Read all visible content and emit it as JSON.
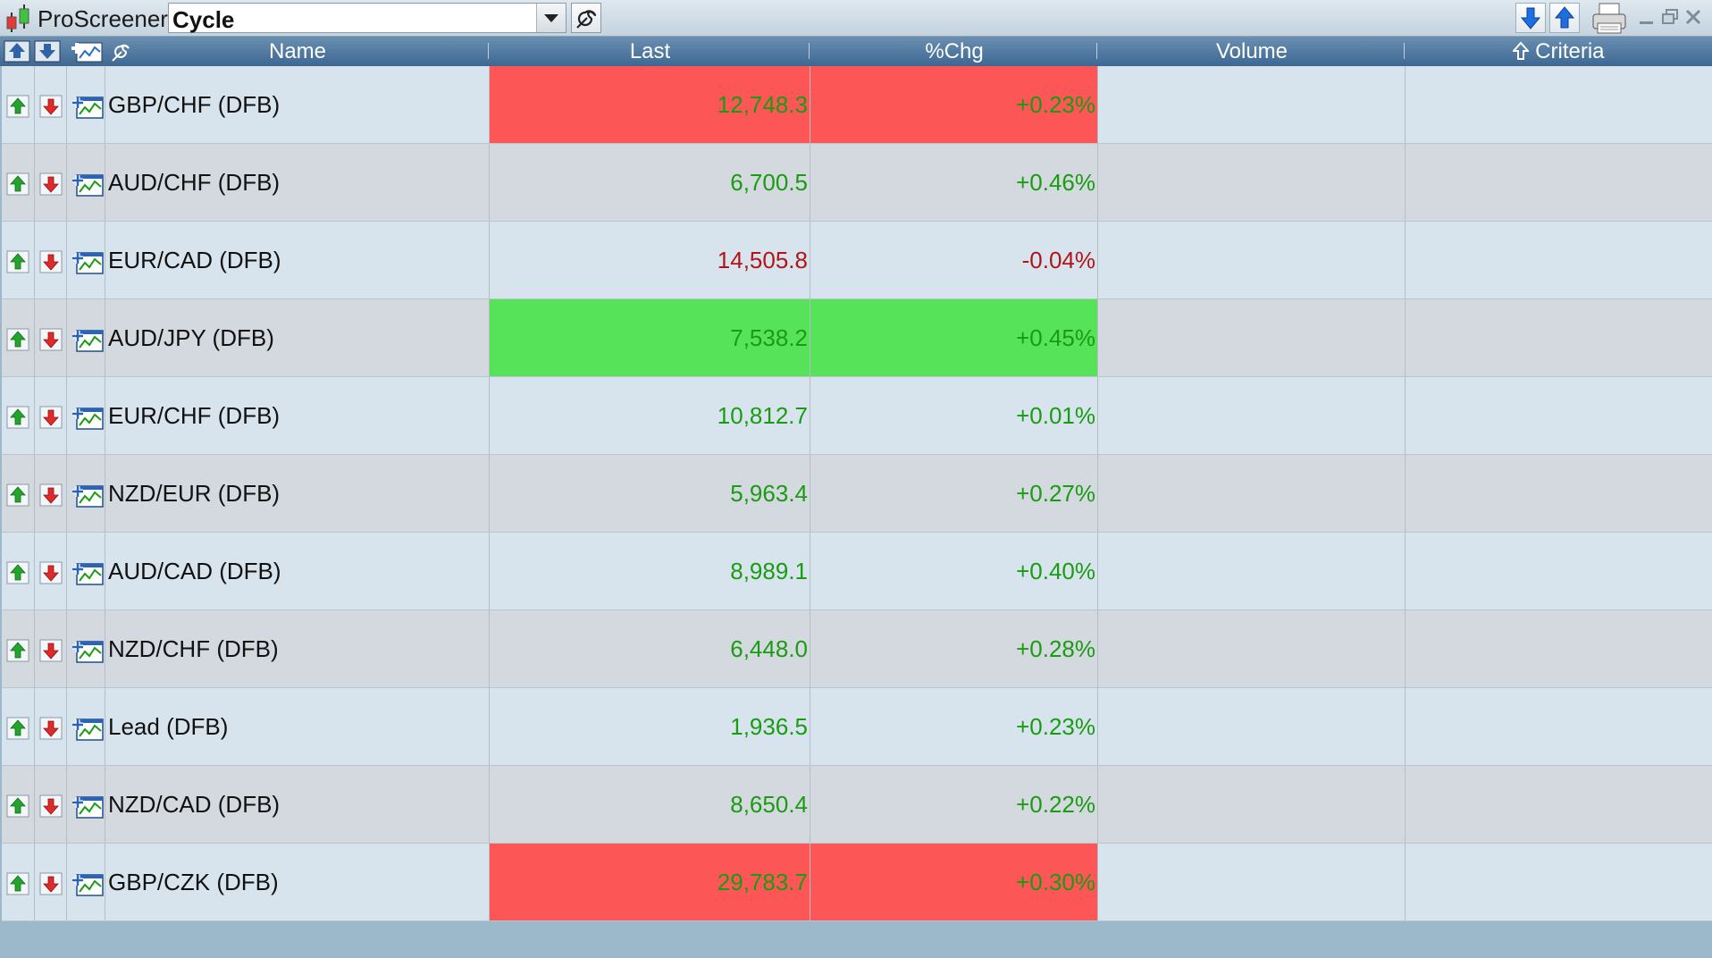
{
  "app": {
    "title": "ProScreener",
    "screener_name": "Cycle"
  },
  "header": {
    "columns": [
      "Name",
      "Last",
      "%Chg",
      "Volume",
      "Criteria"
    ],
    "criteria_sort": "up-arrow"
  },
  "colors": {
    "positive": "#1a9c12",
    "negative": "#b3141a",
    "highlight_red": "#fd5656",
    "highlight_green": "#56e35a",
    "header_bg": "#4a7399"
  },
  "rows": [
    {
      "name": "GBP/CHF (DFB)",
      "last": "12,748.3",
      "chg": "+0.23%",
      "highlight": "red"
    },
    {
      "name": "AUD/CHF (DFB)",
      "last": "6,700.5",
      "chg": "+0.46%",
      "highlight": ""
    },
    {
      "name": "EUR/CAD (DFB)",
      "last": "14,505.8",
      "chg": "-0.04%",
      "highlight": ""
    },
    {
      "name": "AUD/JPY (DFB)",
      "last": "7,538.2",
      "chg": "+0.45%",
      "highlight": "green"
    },
    {
      "name": "EUR/CHF (DFB)",
      "last": "10,812.7",
      "chg": "+0.01%",
      "highlight": ""
    },
    {
      "name": "NZD/EUR (DFB)",
      "last": "5,963.4",
      "chg": "+0.27%",
      "highlight": ""
    },
    {
      "name": "AUD/CAD (DFB)",
      "last": "8,989.1",
      "chg": "+0.40%",
      "highlight": ""
    },
    {
      "name": "NZD/CHF (DFB)",
      "last": "6,448.0",
      "chg": "+0.28%",
      "highlight": ""
    },
    {
      "name": "Lead (DFB)",
      "last": "1,936.5",
      "chg": "+0.23%",
      "highlight": ""
    },
    {
      "name": "NZD/CAD (DFB)",
      "last": "8,650.4",
      "chg": "+0.22%",
      "highlight": ""
    },
    {
      "name": "GBP/CZK (DFB)",
      "last": "29,783.7",
      "chg": "+0.30%",
      "highlight": "red"
    }
  ],
  "icons": {
    "row_up": "green-up-arrow-icon",
    "row_down": "red-down-arrow-icon",
    "row_chart": "add-chart-icon",
    "toolbar": [
      "sort-down-icon",
      "sort-up-icon",
      "print-icon",
      "minimize-icon",
      "restore-icon",
      "close-icon"
    ]
  }
}
